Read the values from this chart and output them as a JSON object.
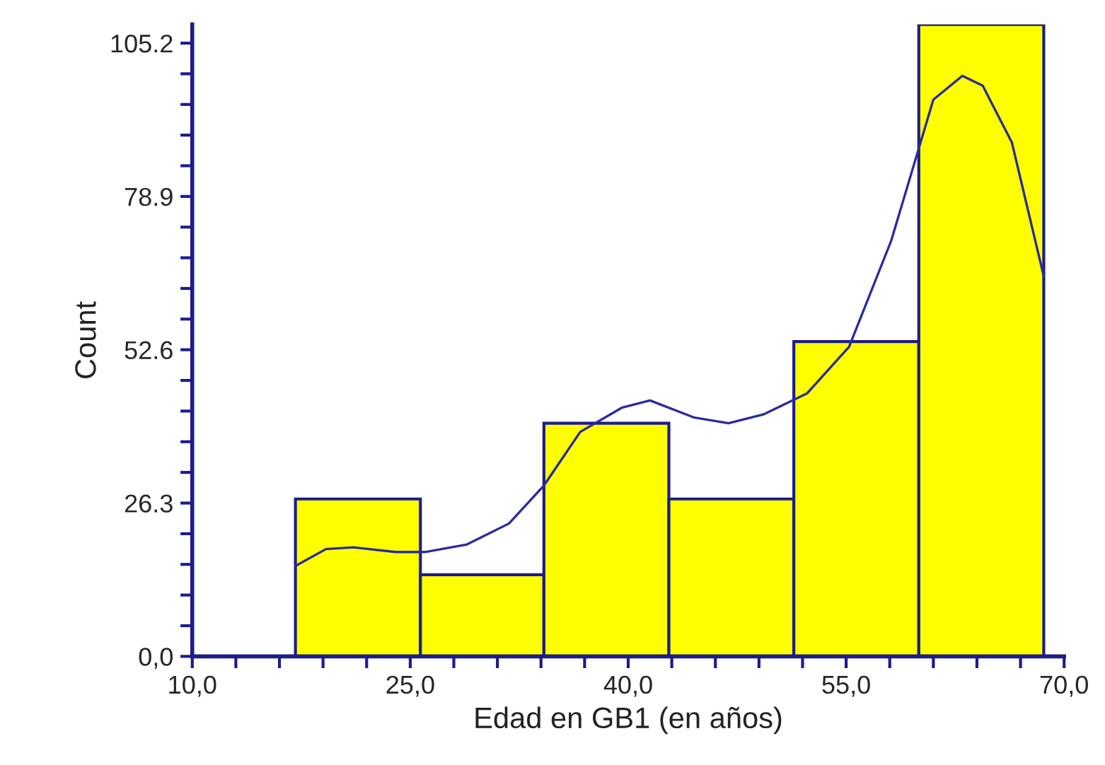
{
  "chart_data": {
    "type": "histogram",
    "xlabel": "Edad en GB1 (en años)",
    "ylabel": "Count",
    "bins": [
      17.1,
      25.7,
      34.2,
      42.8,
      51.4,
      60.0,
      68.6
    ],
    "values": [
      27,
      14,
      40,
      27,
      54,
      108.4
    ],
    "color": "#ffff00",
    "series": [
      {
        "type": "line",
        "color": "#2b2b9c",
        "x": [
          17.1,
          19.2,
          21.1,
          24.0,
          26.0,
          28.9,
          31.8,
          34.2,
          36.7,
          39.6,
          41.5,
          44.5,
          46.9,
          49.3,
          52.3,
          55.2,
          58.1,
          61.0,
          63.0,
          64.4,
          66.4,
          68.6
        ],
        "values": [
          15.5,
          18.4,
          18.7,
          17.9,
          17.9,
          19.2,
          22.8,
          29.3,
          38.5,
          42.7,
          43.9,
          41.0,
          40.0,
          41.5,
          45.1,
          53.1,
          71.3,
          95.5,
          99.6,
          97.9,
          88.2,
          65.2
        ]
      }
    ],
    "xlim": [
      10,
      70
    ],
    "ylim": [
      0,
      108.4
    ],
    "xticks": [
      {
        "value": 10,
        "label": "10,0"
      },
      {
        "value": 13,
        "label": null
      },
      {
        "value": 16,
        "label": null
      },
      {
        "value": 19,
        "label": null
      },
      {
        "value": 22,
        "label": null
      },
      {
        "value": 25,
        "label": "25,0"
      },
      {
        "value": 28,
        "label": null
      },
      {
        "value": 31,
        "label": null
      },
      {
        "value": 34,
        "label": null
      },
      {
        "value": 37,
        "label": null
      },
      {
        "value": 40,
        "label": "40,0"
      },
      {
        "value": 43,
        "label": null
      },
      {
        "value": 46,
        "label": null
      },
      {
        "value": 49,
        "label": null
      },
      {
        "value": 52,
        "label": null
      },
      {
        "value": 55,
        "label": "55,0"
      },
      {
        "value": 58,
        "label": null
      },
      {
        "value": 61,
        "label": null
      },
      {
        "value": 64,
        "label": null
      },
      {
        "value": 67,
        "label": null
      },
      {
        "value": 70,
        "label": "70,0"
      }
    ],
    "yticks": [
      {
        "value": 0,
        "label": "0,0"
      },
      {
        "value": 5.26,
        "label": null
      },
      {
        "value": 10.52,
        "label": null
      },
      {
        "value": 15.78,
        "label": null
      },
      {
        "value": 21.04,
        "label": null
      },
      {
        "value": 26.3,
        "label": "26.3"
      },
      {
        "value": 31.56,
        "label": null
      },
      {
        "value": 36.82,
        "label": null
      },
      {
        "value": 42.08,
        "label": null
      },
      {
        "value": 47.34,
        "label": null
      },
      {
        "value": 52.6,
        "label": "52.6"
      },
      {
        "value": 57.86,
        "label": null
      },
      {
        "value": 63.12,
        "label": null
      },
      {
        "value": 68.38,
        "label": null
      },
      {
        "value": 73.64,
        "label": null
      },
      {
        "value": 78.9,
        "label": "78.9"
      },
      {
        "value": 84.16,
        "label": null
      },
      {
        "value": 89.42,
        "label": null
      },
      {
        "value": 94.68,
        "label": null
      },
      {
        "value": 99.94,
        "label": null
      },
      {
        "value": 105.2,
        "label": "105.2"
      }
    ],
    "grid": false
  }
}
